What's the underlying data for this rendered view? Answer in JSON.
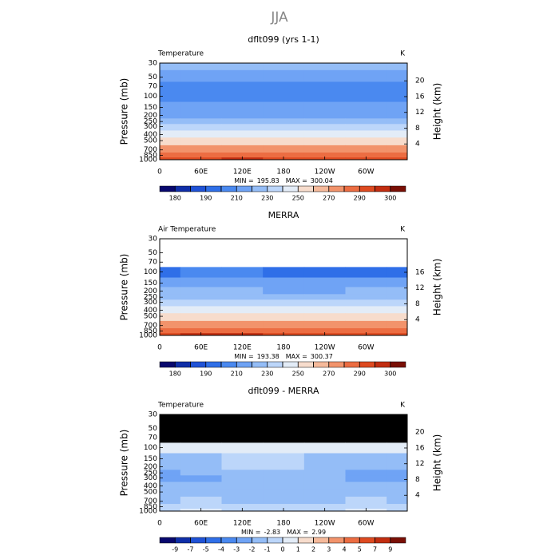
{
  "title": "JJA",
  "chart_data": [
    {
      "type": "contour",
      "title": "dflt099 (yrs 1-1)",
      "left_label": "Temperature",
      "right_label": "K",
      "ylabel": "Pressure (mb)",
      "y2label": "Height (km)",
      "x": [
        0,
        60,
        120,
        180,
        240,
        300,
        360
      ],
      "y": [
        30,
        50,
        70,
        100,
        150,
        200,
        250,
        300,
        400,
        500,
        700,
        850,
        1000
      ],
      "z": [
        [
          224,
          224,
          225,
          225,
          225,
          224,
          224
        ],
        [
          214,
          215,
          215,
          215,
          214,
          214,
          214
        ],
        [
          206,
          207,
          207,
          207,
          206,
          206,
          206
        ],
        [
          200,
          201,
          201,
          200,
          200,
          200,
          200
        ],
        [
          210,
          211,
          211,
          210,
          210,
          210,
          210
        ],
        [
          218,
          219,
          219,
          218,
          218,
          218,
          218
        ],
        [
          226,
          226,
          227,
          226,
          226,
          226,
          226
        ],
        [
          233,
          233,
          234,
          233,
          233,
          233,
          233
        ],
        [
          246,
          246,
          247,
          246,
          246,
          246,
          246
        ],
        [
          256,
          257,
          257,
          256,
          256,
          256,
          256
        ],
        [
          272,
          273,
          274,
          272,
          271,
          272,
          272
        ],
        [
          282,
          284,
          285,
          283,
          282,
          283,
          282
        ],
        [
          292,
          294,
          296,
          293,
          292,
          293,
          292
        ]
      ],
      "xlim": [
        0,
        360
      ],
      "xticks": [
        0,
        {
          "value": 60,
          "label": "60E"
        },
        {
          "value": 120,
          "label": "120E"
        },
        180,
        {
          "value": 240,
          "label": "120W"
        },
        {
          "value": 300,
          "label": "60W"
        }
      ],
      "ylim": [
        1000,
        30
      ],
      "log_y": true,
      "yticks": [
        30,
        50,
        70,
        100,
        150,
        200,
        250,
        300,
        400,
        500,
        700,
        850,
        1000
      ],
      "y2lim": [
        0,
        24.5
      ],
      "y2ticks": [
        4,
        8,
        12,
        16,
        20
      ],
      "min_label": "MIN =",
      "min": 195.83,
      "max_label": "MAX =",
      "max": 300.04,
      "missing_color": "#ffffff",
      "colorbar": {
        "levels": [
          180,
          185,
          190,
          200,
          210,
          220,
          230,
          240,
          250,
          260,
          270,
          280,
          290,
          295,
          300
        ],
        "ticks": [
          180,
          190,
          210,
          230,
          250,
          270,
          290,
          300
        ],
        "colors": [
          "#08086e",
          "#0f2ea8",
          "#1f52d6",
          "#2f6fe8",
          "#4a89f0",
          "#6fa3f5",
          "#94bdf7",
          "#bcd6fa",
          "#e3ecf7",
          "#f7dccc",
          "#f5b99a",
          "#f2936b",
          "#ec6d42",
          "#de4a20",
          "#c22d10",
          "#7a0f05"
        ]
      }
    },
    {
      "type": "contour",
      "title": "MERRA",
      "left_label": "Air Temperature",
      "right_label": "K",
      "ylabel": "Pressure (mb)",
      "y2label": "Height (km)",
      "x": [
        0,
        60,
        120,
        180,
        240,
        300,
        360
      ],
      "y": [
        30,
        50,
        70,
        100,
        150,
        200,
        250,
        300,
        400,
        500,
        700,
        850,
        1000
      ],
      "z": [
        [
          null,
          null,
          null,
          null,
          null,
          null,
          null
        ],
        [
          null,
          null,
          null,
          null,
          null,
          null,
          null
        ],
        [
          null,
          null,
          null,
          null,
          null,
          null,
          null
        ],
        [
          199,
          200,
          200,
          199,
          199,
          199,
          199
        ],
        [
          211,
          212,
          212,
          211,
          211,
          211,
          211
        ],
        [
          220,
          220,
          220,
          219,
          219,
          220,
          220
        ],
        [
          228,
          228,
          228,
          228,
          228,
          228,
          228
        ],
        [
          235,
          235,
          236,
          235,
          235,
          235,
          235
        ],
        [
          247,
          247,
          248,
          247,
          247,
          247,
          247
        ],
        [
          257,
          258,
          258,
          257,
          257,
          257,
          257
        ],
        [
          273,
          274,
          275,
          273,
          272,
          273,
          273
        ],
        [
          283,
          285,
          286,
          284,
          283,
          284,
          283
        ],
        [
          293,
          295,
          297,
          294,
          293,
          294,
          293
        ]
      ],
      "xlim": [
        0,
        360
      ],
      "xticks": [
        0,
        {
          "value": 60,
          "label": "60E"
        },
        {
          "value": 120,
          "label": "120E"
        },
        180,
        {
          "value": 240,
          "label": "120W"
        },
        {
          "value": 300,
          "label": "60W"
        }
      ],
      "ylim": [
        1000,
        30
      ],
      "log_y": true,
      "yticks": [
        30,
        50,
        70,
        100,
        150,
        200,
        250,
        300,
        400,
        500,
        700,
        850,
        1000
      ],
      "y2lim": [
        0,
        24.5
      ],
      "y2ticks": [
        4,
        8,
        12,
        16
      ],
      "min_label": "MIN =",
      "min": 193.38,
      "max_label": "MAX =",
      "max": 300.37,
      "missing_color": "#ffffff",
      "colorbar": {
        "levels": [
          180,
          185,
          190,
          200,
          210,
          220,
          230,
          240,
          250,
          260,
          270,
          280,
          290,
          295,
          300
        ],
        "ticks": [
          180,
          190,
          210,
          230,
          250,
          270,
          290,
          300
        ],
        "colors": [
          "#08086e",
          "#0f2ea8",
          "#1f52d6",
          "#2f6fe8",
          "#4a89f0",
          "#6fa3f5",
          "#94bdf7",
          "#bcd6fa",
          "#e3ecf7",
          "#f7dccc",
          "#f5b99a",
          "#f2936b",
          "#ec6d42",
          "#de4a20",
          "#c22d10",
          "#7a0f05"
        ]
      }
    },
    {
      "type": "contour",
      "title": "dflt099 - MERRA",
      "left_label": "Temperature",
      "right_label": "K",
      "ylabel": "Pressure (mb)",
      "y2label": "Height (km)",
      "x": [
        0,
        60,
        120,
        180,
        240,
        300,
        360
      ],
      "y": [
        30,
        50,
        70,
        100,
        150,
        200,
        250,
        300,
        400,
        500,
        700,
        850,
        1000
      ],
      "z": [
        [
          null,
          null,
          null,
          null,
          null,
          null,
          null
        ],
        [
          null,
          null,
          null,
          null,
          null,
          null,
          null
        ],
        [
          null,
          null,
          null,
          null,
          null,
          null,
          null
        ],
        [
          0.5,
          0.3,
          0.8,
          0.9,
          0.6,
          0.5,
          0.5
        ],
        [
          -1.5,
          -1.2,
          -0.5,
          -0.8,
          -1.5,
          -1.5,
          -1.5
        ],
        [
          -1.5,
          -1.5,
          -1.0,
          -0.8,
          -1.5,
          -1.5,
          -1.5
        ],
        [
          -2.5,
          -1.5,
          -1.5,
          -2.0,
          -1.5,
          -2.5,
          -2.5
        ],
        [
          -2.5,
          -2.5,
          -1.5,
          -2.0,
          -1.5,
          -2.5,
          -2.5
        ],
        [
          -1.5,
          -2.0,
          -1.5,
          -1.5,
          -1.5,
          -1.5,
          -1.5
        ],
        [
          -1.5,
          -1.5,
          -1.5,
          -1.5,
          -1.5,
          -1.5,
          -1.5
        ],
        [
          -1.5,
          -1.0,
          -1.5,
          -1.5,
          -1.5,
          -0.5,
          -1.5
        ],
        [
          -0.5,
          -0.5,
          -0.5,
          -0.8,
          -0.5,
          -0.5,
          -0.5
        ],
        [
          -0.5,
          0.3,
          -0.5,
          -0.5,
          -0.5,
          0.2,
          -0.5
        ]
      ],
      "xlim": [
        0,
        360
      ],
      "xticks": [
        0,
        {
          "value": 60,
          "label": "60E"
        },
        {
          "value": 120,
          "label": "120E"
        },
        180,
        {
          "value": 240,
          "label": "120W"
        },
        {
          "value": 300,
          "label": "60W"
        }
      ],
      "ylim": [
        1000,
        30
      ],
      "log_y": true,
      "yticks": [
        30,
        50,
        70,
        100,
        150,
        200,
        250,
        300,
        400,
        500,
        700,
        850,
        1000
      ],
      "y2lim": [
        0,
        24.5
      ],
      "y2ticks": [
        4,
        8,
        12,
        16,
        20
      ],
      "min_label": "MIN =",
      "min": -2.83,
      "max_label": "MAX =",
      "max": 2.99,
      "missing_color": "#000000",
      "colorbar": {
        "levels": [
          -9,
          -7,
          -5,
          -4,
          -3,
          -2,
          -1,
          0,
          1,
          2,
          3,
          4,
          5,
          7,
          9
        ],
        "ticks": [
          -9,
          -7,
          -5,
          -4,
          -3,
          -2,
          -1,
          0,
          1,
          2,
          3,
          4,
          5,
          7,
          9
        ],
        "colors": [
          "#08086e",
          "#0f2ea8",
          "#1f52d6",
          "#2f6fe8",
          "#4a89f0",
          "#6fa3f5",
          "#94bdf7",
          "#bcd6fa",
          "#e3ecf7",
          "#f7dccc",
          "#f5b99a",
          "#f2936b",
          "#ec6d42",
          "#de4a20",
          "#c22d10",
          "#7a0f05"
        ]
      }
    }
  ]
}
